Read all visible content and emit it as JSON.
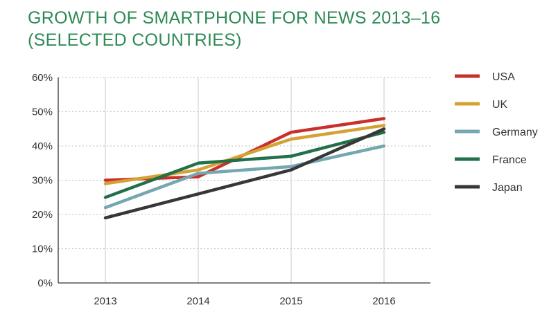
{
  "title": {
    "line1": "GROWTH OF SMARTPHONE FOR NEWS 2013–16",
    "line2": "(SELECTED COUNTRIES)"
  },
  "colors": {
    "title": "#2e8a55",
    "gridline": "#bbbbbb",
    "axis": "#333333",
    "text": "#333333"
  },
  "chart_data": {
    "type": "line",
    "title": "GROWTH OF SMARTPHONE FOR NEWS 2013–16 (SELECTED COUNTRIES)",
    "x": [
      "2013",
      "2014",
      "2015",
      "2016"
    ],
    "yticks": [
      "0%",
      "10%",
      "20%",
      "30%",
      "40%",
      "50%",
      "60%"
    ],
    "ylim": [
      0,
      60
    ],
    "grid": {
      "horizontal": "dotted",
      "vertical": "solid"
    },
    "legend": "right",
    "series": [
      {
        "name": "USA",
        "color": "#c8302b",
        "values": [
          30,
          31,
          44,
          48
        ]
      },
      {
        "name": "UK",
        "color": "#d4a233",
        "values": [
          29,
          33,
          42,
          46
        ]
      },
      {
        "name": "Germany",
        "color": "#74a7b0",
        "values": [
          22,
          32,
          34,
          40
        ]
      },
      {
        "name": "France",
        "color": "#21704a",
        "values": [
          25,
          35,
          37,
          44
        ]
      },
      {
        "name": "Japan",
        "color": "#373737",
        "values": [
          19,
          26,
          33,
          45
        ]
      }
    ]
  }
}
